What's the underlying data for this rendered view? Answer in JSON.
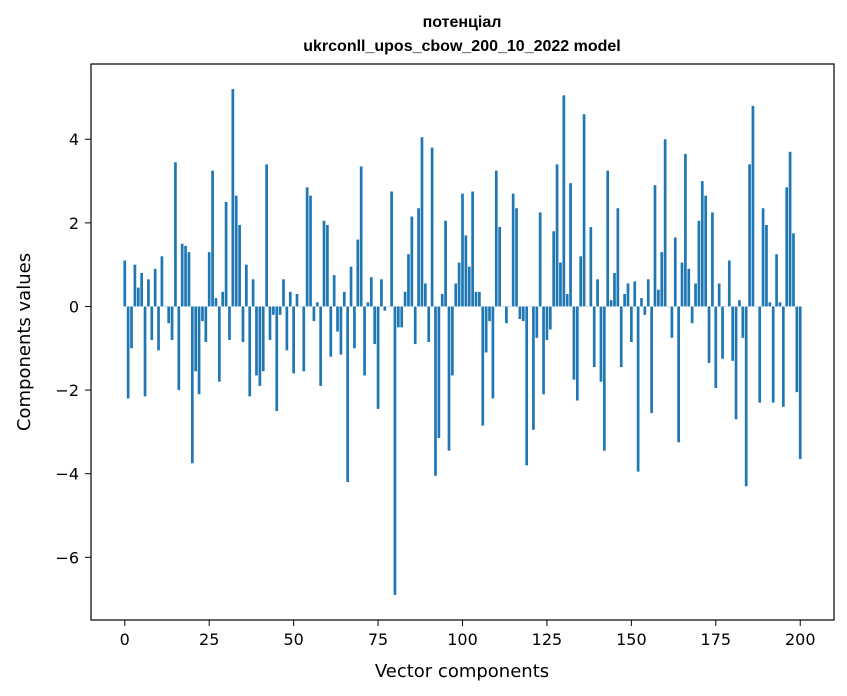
{
  "chart_data": {
    "type": "bar",
    "title_line1": "потенціал",
    "title_line2": "ukrconll_upos_cbow_200_10_2022 model",
    "xlabel": "Vector components",
    "ylabel": "Components values",
    "xlim": [
      -10,
      210
    ],
    "ylim": [
      -7.5,
      5.8
    ],
    "xticks": [
      0,
      25,
      50,
      75,
      100,
      125,
      150,
      175,
      200
    ],
    "yticks": [
      -6,
      -4,
      -2,
      0,
      2,
      4
    ],
    "bar_color": "#1f77b4",
    "grid": false,
    "legend": "none",
    "values": [
      1.1,
      -2.2,
      -1.0,
      1.0,
      0.45,
      0.8,
      -2.15,
      0.65,
      -0.8,
      0.9,
      -1.05,
      1.2,
      0.0,
      -0.4,
      -0.8,
      3.45,
      -2.0,
      1.5,
      1.45,
      1.3,
      -3.75,
      -1.55,
      -2.1,
      -0.35,
      -0.85,
      1.3,
      3.25,
      0.2,
      -1.8,
      0.35,
      2.5,
      -0.8,
      5.2,
      2.65,
      1.95,
      -0.85,
      1.0,
      -2.15,
      0.65,
      -1.65,
      -1.9,
      -1.55,
      3.4,
      -0.8,
      -0.2,
      -2.5,
      -0.2,
      0.65,
      -1.05,
      0.35,
      -1.6,
      0.3,
      0.0,
      -1.55,
      2.85,
      2.65,
      -0.35,
      0.1,
      -1.9,
      2.05,
      1.95,
      -1.2,
      0.75,
      -0.6,
      -1.15,
      0.35,
      -4.2,
      0.95,
      -1.0,
      1.6,
      3.35,
      -1.65,
      0.1,
      0.7,
      -0.9,
      -2.45,
      0.65,
      -0.1,
      0.0,
      2.75,
      -6.9,
      -0.5,
      -0.5,
      0.35,
      1.25,
      2.15,
      -0.9,
      2.35,
      4.05,
      0.55,
      -0.85,
      3.8,
      -4.05,
      -3.15,
      0.3,
      2.05,
      -3.45,
      -1.65,
      0.55,
      1.05,
      2.7,
      1.7,
      0.95,
      2.75,
      0.35,
      0.35,
      -2.85,
      -1.1,
      -0.35,
      -2.2,
      3.25,
      1.9,
      0.0,
      -0.4,
      0.0,
      2.7,
      2.35,
      -0.3,
      -0.35,
      -3.8,
      0.0,
      -2.95,
      -0.75,
      2.25,
      -2.1,
      -0.8,
      -0.55,
      1.8,
      3.4,
      1.05,
      5.05,
      0.3,
      2.95,
      -1.75,
      -2.25,
      1.2,
      4.6,
      0.0,
      1.9,
      -1.45,
      0.65,
      -1.8,
      -3.45,
      3.25,
      0.15,
      0.8,
      2.35,
      -1.45,
      0.3,
      0.55,
      -0.85,
      0.6,
      -3.95,
      0.2,
      -0.2,
      0.65,
      -2.55,
      2.9,
      0.4,
      1.3,
      4.0,
      0.0,
      -0.75,
      1.65,
      -3.25,
      1.05,
      3.65,
      0.9,
      -0.4,
      0.55,
      2.05,
      3.0,
      2.65,
      -1.35,
      2.25,
      -1.95,
      0.55,
      -1.25,
      0.0,
      1.1,
      -1.3,
      -2.7,
      0.15,
      -0.75,
      -4.3,
      3.4,
      4.8,
      0.0,
      -2.3,
      2.35,
      1.95,
      0.1,
      -2.3,
      1.25,
      0.1,
      -2.4,
      2.85,
      3.7,
      1.75,
      -2.05,
      -3.65
    ]
  }
}
